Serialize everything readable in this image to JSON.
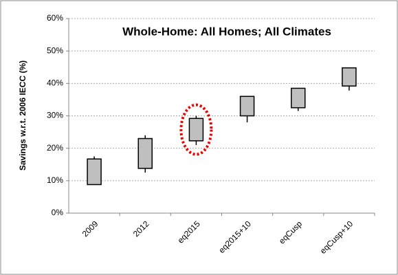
{
  "chart_data": {
    "type": "box",
    "title": "Whole-Home: All Homes; All Climates",
    "y_label": "Savings w.r.t. 2006 IECC (%)",
    "categories": [
      "2009",
      "2012",
      "eq2015",
      "eq2015+10",
      "eqCusp",
      "eqCusp+10"
    ],
    "low": [
      8.8,
      12.5,
      21,
      28,
      31.5,
      37.8
    ],
    "box_low": [
      8.8,
      13.8,
      22.3,
      30,
      32.5,
      39.2
    ],
    "box_high": [
      16.7,
      23,
      29.2,
      36,
      38.5,
      44.8
    ],
    "high": [
      17.5,
      24,
      30,
      36,
      38.5,
      44.8
    ],
    "color": "#bfbfbf",
    "ylim": [
      0,
      60
    ],
    "yticks": [
      {
        "value": 0,
        "label": "0%"
      },
      {
        "value": 10,
        "label": "10%"
      },
      {
        "value": 20,
        "label": "20%"
      },
      {
        "value": 30,
        "label": "30%"
      },
      {
        "value": 40,
        "label": "40%"
      },
      {
        "value": 50,
        "label": "50%"
      },
      {
        "value": 60,
        "label": "60%"
      }
    ],
    "grid": true
  }
}
